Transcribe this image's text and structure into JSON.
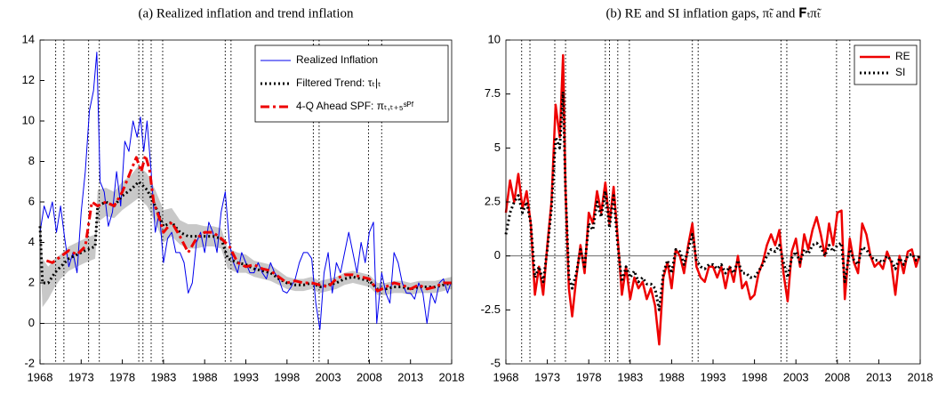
{
  "chart_data": [
    {
      "type": "line",
      "title": "(a) Realized inflation and trend inflation",
      "xlim": [
        1968,
        2018
      ],
      "xticks": [
        1968,
        1973,
        1978,
        1983,
        1988,
        1993,
        1998,
        2003,
        2008,
        2013,
        2018
      ],
      "ylim": [
        -2,
        14
      ],
      "yticks": [
        -2,
        0,
        2,
        4,
        6,
        8,
        10,
        12,
        14
      ],
      "legend": "upper right",
      "vlines": [
        1969.9,
        1970.9,
        1973.9,
        1975.2,
        1980.0,
        1980.5,
        1981.5,
        1982.9,
        1990.5,
        1991.2,
        2001.2,
        2001.9,
        2007.9,
        2009.5
      ],
      "band": {
        "color": "#c8c8c8",
        "x": [
          1968,
          1968.3,
          1969,
          1969.8,
          1970.5,
          1971.5,
          1972.5,
          1973.5,
          1974.7,
          1975,
          1976,
          1977,
          1978,
          1979,
          1980,
          1981,
          1982,
          1983,
          1984,
          1985,
          1986,
          1987,
          1988,
          1989,
          1990,
          1990.8,
          1992,
          1993,
          1994,
          1995,
          1996,
          1997,
          1998,
          1999,
          2000,
          2001,
          2002,
          2003,
          2004,
          2005,
          2006,
          2007,
          2008,
          2009,
          2010,
          2011,
          2012,
          2013,
          2014,
          2015,
          2016,
          2017,
          2018
        ],
        "lower": [
          3.6,
          0.8,
          1.2,
          1.8,
          2.2,
          2.6,
          2.8,
          3.0,
          3.2,
          5.0,
          5.3,
          5.2,
          5.6,
          5.9,
          6.2,
          5.8,
          5.0,
          4.0,
          4.3,
          3.9,
          3.7,
          3.7,
          3.8,
          3.8,
          3.7,
          2.7,
          2.5,
          2.5,
          2.3,
          2.2,
          2.1,
          1.9,
          1.7,
          1.6,
          1.6,
          1.7,
          1.5,
          1.6,
          1.7,
          1.9,
          2.0,
          1.9,
          1.8,
          1.4,
          1.4,
          1.5,
          1.5,
          1.4,
          1.5,
          1.5,
          1.5,
          1.6,
          1.7
        ],
        "upper": [
          6.0,
          3.2,
          2.8,
          3.2,
          3.4,
          3.8,
          4.0,
          4.2,
          4.4,
          6.6,
          6.7,
          6.5,
          7.0,
          7.3,
          7.8,
          7.4,
          6.6,
          5.6,
          5.7,
          5.1,
          4.9,
          4.9,
          4.8,
          4.8,
          4.7,
          3.7,
          3.5,
          3.4,
          3.1,
          3.0,
          2.9,
          2.6,
          2.3,
          2.2,
          2.2,
          2.3,
          2.1,
          2.2,
          2.3,
          2.5,
          2.6,
          2.5,
          2.4,
          2.0,
          2.0,
          2.1,
          2.1,
          2.0,
          2.1,
          2.1,
          2.1,
          2.2,
          2.3
        ]
      },
      "series": [
        {
          "name": "Realized Inflation",
          "color": "#0000ee",
          "style": "solid",
          "x": [
            1968,
            1968.5,
            1969,
            1969.5,
            1970,
            1970.5,
            1971,
            1971.5,
            1972,
            1972.5,
            1973,
            1973.5,
            1974,
            1974.5,
            1974.9,
            1975.3,
            1975.8,
            1976.3,
            1976.8,
            1977.3,
            1977.8,
            1978.3,
            1978.8,
            1979.3,
            1979.8,
            1980.2,
            1980.6,
            1981,
            1981.5,
            1982,
            1982.5,
            1983,
            1983.5,
            1984,
            1984.5,
            1985,
            1985.5,
            1986,
            1986.5,
            1987,
            1987.5,
            1988,
            1988.5,
            1989,
            1989.5,
            1990,
            1990.5,
            1991,
            1991.5,
            1992,
            1992.5,
            1993,
            1993.5,
            1994,
            1994.5,
            1995,
            1995.5,
            1996,
            1996.5,
            1997,
            1997.5,
            1998,
            1998.5,
            1999,
            1999.5,
            2000,
            2000.5,
            2001,
            2001.5,
            2002,
            2002.5,
            2003,
            2003.5,
            2004,
            2004.5,
            2005,
            2005.5,
            2006,
            2006.5,
            2007,
            2007.5,
            2008,
            2008.5,
            2008.9,
            2009.5,
            2010,
            2010.5,
            2011,
            2011.5,
            2012,
            2012.5,
            2013,
            2013.5,
            2014,
            2014.5,
            2015,
            2015.5,
            2016,
            2016.5,
            2017,
            2017.5,
            2017.9
          ],
          "values": [
            4.5,
            5.8,
            5.2,
            6,
            4.5,
            5.8,
            4.2,
            2.8,
            3.5,
            2.5,
            5.5,
            7.5,
            10.5,
            11.5,
            13.4,
            7,
            6.5,
            4.8,
            5.5,
            7.5,
            5.8,
            9,
            8.5,
            10,
            9.2,
            10.2,
            8.5,
            10,
            7.5,
            4.5,
            5.5,
            3,
            4.2,
            4.5,
            3.5,
            3.5,
            3,
            1.5,
            2,
            4,
            4.5,
            3.5,
            5,
            4.5,
            3.5,
            5.5,
            6.5,
            4,
            3,
            2.5,
            3.5,
            3,
            2.5,
            2.5,
            3,
            2.5,
            2.2,
            3,
            2.5,
            2.2,
            1.6,
            1.5,
            1.8,
            2.2,
            3,
            3.5,
            3.5,
            3.2,
            1,
            -0.3,
            2.5,
            3.5,
            1.5,
            3,
            2.5,
            3.5,
            4.5,
            3.5,
            2.5,
            4,
            3,
            4.5,
            5,
            0,
            2.5,
            1.5,
            1,
            3.5,
            3,
            2,
            1.5,
            1.5,
            1.2,
            2,
            1.5,
            0,
            1.5,
            1,
            2,
            2.2,
            1.5,
            2
          ]
        },
        {
          "name": "Filtered Trend: τₜ|ₜ",
          "color": "#000000",
          "style": "dotted",
          "x": [
            1968,
            1968.3,
            1969,
            1969.8,
            1970.5,
            1971.5,
            1972.5,
            1973.5,
            1974.7,
            1975,
            1976,
            1977,
            1978,
            1979,
            1980,
            1981,
            1982,
            1983,
            1984,
            1985,
            1986,
            1987,
            1988,
            1989,
            1990,
            1990.8,
            1992,
            1993,
            1994,
            1995,
            1996,
            1997,
            1998,
            1999,
            2000,
            2001,
            2002,
            2003,
            2004,
            2005,
            2006,
            2007,
            2008,
            2009,
            2010,
            2011,
            2012,
            2013,
            2014,
            2015,
            2016,
            2017,
            2018
          ],
          "values": [
            4.8,
            2,
            2,
            2.5,
            2.8,
            3.2,
            3.4,
            3.6,
            3.8,
            5.8,
            6,
            5.8,
            6.3,
            6.6,
            7,
            6.6,
            5.8,
            4.8,
            5,
            4.5,
            4.3,
            4.3,
            4.3,
            4.3,
            4.2,
            3.2,
            3,
            2.9,
            2.7,
            2.6,
            2.5,
            2.2,
            2,
            1.9,
            1.9,
            2,
            1.8,
            1.9,
            2,
            2.2,
            2.3,
            2.2,
            2.1,
            1.7,
            1.7,
            1.8,
            1.8,
            1.7,
            1.8,
            1.8,
            1.8,
            1.9,
            2
          ]
        },
        {
          "name": "4-Q Ahead SPF: πₜ,ₜ₊₅ˢᴾᶠ",
          "color": "#ee0000",
          "style": "dashdot",
          "x": [
            1968.8,
            1969.5,
            1970.5,
            1971.5,
            1972.5,
            1973.5,
            1974.3,
            1975,
            1976,
            1977,
            1978,
            1979,
            1979.7,
            1980.3,
            1980.8,
            1981.3,
            1981.8,
            1982.5,
            1983,
            1984,
            1985,
            1986,
            1987,
            1988,
            1989,
            1990,
            1991,
            1992,
            1993,
            1994,
            1995,
            1996,
            1997,
            1998,
            1999,
            2000,
            2001,
            2002,
            2003,
            2004,
            2005,
            2006,
            2007,
            2008,
            2009,
            2010,
            2011,
            2012,
            2013,
            2014,
            2015,
            2016,
            2017,
            2018
          ],
          "values": [
            3.1,
            3,
            3.3,
            3.6,
            3.4,
            3.8,
            6,
            5.8,
            6,
            5.8,
            6.5,
            7.5,
            8.2,
            7.5,
            8.3,
            7.6,
            6,
            5.2,
            4.5,
            5,
            4.3,
            3.5,
            4.2,
            4.5,
            4.5,
            4.2,
            3.8,
            3,
            2.8,
            2.9,
            2.7,
            2.6,
            2.3,
            2,
            2.1,
            2,
            2,
            1.9,
            1.8,
            2.2,
            2.4,
            2.4,
            2.3,
            2.2,
            1.6,
            1.8,
            2,
            1.9,
            1.7,
            1.9,
            1.7,
            1.8,
            2,
            2
          ]
        }
      ]
    },
    {
      "type": "line",
      "title": "(b) RE and SI inflation gaps, π̃ₜ and 𝐅ₜπ̃ₜ",
      "xlim": [
        1968,
        2018
      ],
      "xticks": [
        1968,
        1973,
        1978,
        1983,
        1988,
        1993,
        1998,
        2003,
        2008,
        2013,
        2018
      ],
      "ylim": [
        -5,
        10
      ],
      "yticks": [
        -5,
        -2.5,
        0,
        2.5,
        5,
        7.5,
        10
      ],
      "legend": "upper right",
      "vlines": [
        1969.9,
        1970.9,
        1973.9,
        1975.2,
        1980.0,
        1980.5,
        1981.5,
        1982.9,
        1990.5,
        1991.2,
        2001.2,
        2001.9,
        2007.9,
        2009.5
      ],
      "x": [
        1968,
        1968.5,
        1969,
        1969.5,
        1970,
        1970.5,
        1971,
        1971.5,
        1972,
        1972.5,
        1973,
        1973.5,
        1974,
        1974.5,
        1974.9,
        1975.2,
        1975.6,
        1976,
        1976.5,
        1977,
        1977.5,
        1978,
        1978.5,
        1979,
        1979.5,
        1980,
        1980.5,
        1981,
        1981.5,
        1982,
        1982.5,
        1983,
        1983.5,
        1984,
        1984.5,
        1985,
        1985.5,
        1986,
        1986.5,
        1987,
        1987.5,
        1988,
        1988.5,
        1989,
        1989.5,
        1990,
        1990.5,
        1991,
        1991.5,
        1992,
        1992.5,
        1993,
        1993.5,
        1994,
        1994.5,
        1995,
        1995.5,
        1996,
        1996.5,
        1997,
        1997.5,
        1998,
        1998.5,
        1999,
        1999.5,
        2000,
        2000.5,
        2001,
        2001.5,
        2002,
        2002.5,
        2003,
        2003.5,
        2004,
        2004.5,
        2005,
        2005.5,
        2006,
        2006.5,
        2007,
        2007.5,
        2008,
        2008.5,
        2008.9,
        2009.5,
        2010,
        2010.5,
        2011,
        2011.5,
        2012,
        2012.5,
        2013,
        2013.5,
        2014,
        2014.5,
        2015,
        2015.5,
        2016,
        2016.5,
        2017,
        2017.5,
        2017.9
      ],
      "series": [
        {
          "name": "RE",
          "color": "#ee0000",
          "style": "solid",
          "values": [
            2,
            3.5,
            2.5,
            3.8,
            2.2,
            3,
            1.5,
            -1.8,
            -0.5,
            -1.8,
            0.5,
            2.5,
            7,
            5.5,
            9.3,
            3,
            -1.5,
            -2.8,
            -1,
            0.5,
            -0.8,
            2,
            1.5,
            3,
            2,
            3.4,
            1.5,
            3.2,
            0.8,
            -1.8,
            -0.5,
            -2,
            -1,
            -1.5,
            -1.2,
            -2,
            -1.5,
            -2.3,
            -4.1,
            -1,
            -0.3,
            -1.5,
            0.3,
            0,
            -0.8,
            0.5,
            1.5,
            -0.5,
            -1,
            -1.2,
            -0.5,
            -0.5,
            -1,
            -0.5,
            -1.5,
            -0.5,
            -1.2,
            0,
            -1.5,
            -1.2,
            -2,
            -1.8,
            -0.8,
            -0.3,
            0.5,
            1,
            0.5,
            1.2,
            -0.8,
            -2.1,
            0.2,
            0.8,
            -0.5,
            1,
            0.3,
            1.2,
            1.8,
            1,
            0,
            1.5,
            0.5,
            2,
            2.1,
            -2,
            0.8,
            -0.3,
            -0.8,
            1.5,
            1,
            0,
            -0.5,
            -0.3,
            -0.6,
            0.2,
            -0.3,
            -1.8,
            0,
            -0.8,
            0.2,
            0.3,
            -0.5,
            0
          ]
        },
        {
          "name": "SI",
          "color": "#000000",
          "style": "dotted",
          "values": [
            1,
            2,
            2.5,
            2.8,
            2,
            2.5,
            1.5,
            -1,
            -0.5,
            -1.2,
            0.3,
            2.2,
            5.5,
            5,
            7.6,
            3,
            -1,
            -1.5,
            -0.8,
            0.3,
            -0.5,
            1.5,
            1.2,
            2.5,
            1.8,
            3,
            1.3,
            2.8,
            0.5,
            -1.2,
            -0.5,
            -1,
            -0.7,
            -1.2,
            -1,
            -1.3,
            -1.3,
            -1.5,
            -2.5,
            -0.8,
            -0.2,
            -0.8,
            0.3,
            0.2,
            -0.4,
            0.3,
            1,
            -0.2,
            -0.5,
            -0.6,
            -0.4,
            -0.4,
            -0.6,
            -0.4,
            -0.8,
            -0.5,
            -0.8,
            -0.2,
            -0.8,
            -0.8,
            -1,
            -1,
            -0.7,
            -0.4,
            0,
            0.3,
            0.2,
            0.5,
            -0.3,
            -1,
            -0.1,
            0.2,
            -0.3,
            0.3,
            0.1,
            0.5,
            0.6,
            0.4,
            0,
            0.5,
            0.2,
            0.5,
            0.6,
            -1.2,
            0.3,
            -0.2,
            -0.4,
            0.4,
            0.3,
            0,
            -0.2,
            -0.2,
            -0.3,
            0,
            -0.2,
            -0.6,
            -0.1,
            -0.4,
            0,
            0.1,
            -0.2,
            0
          ]
        }
      ]
    }
  ]
}
